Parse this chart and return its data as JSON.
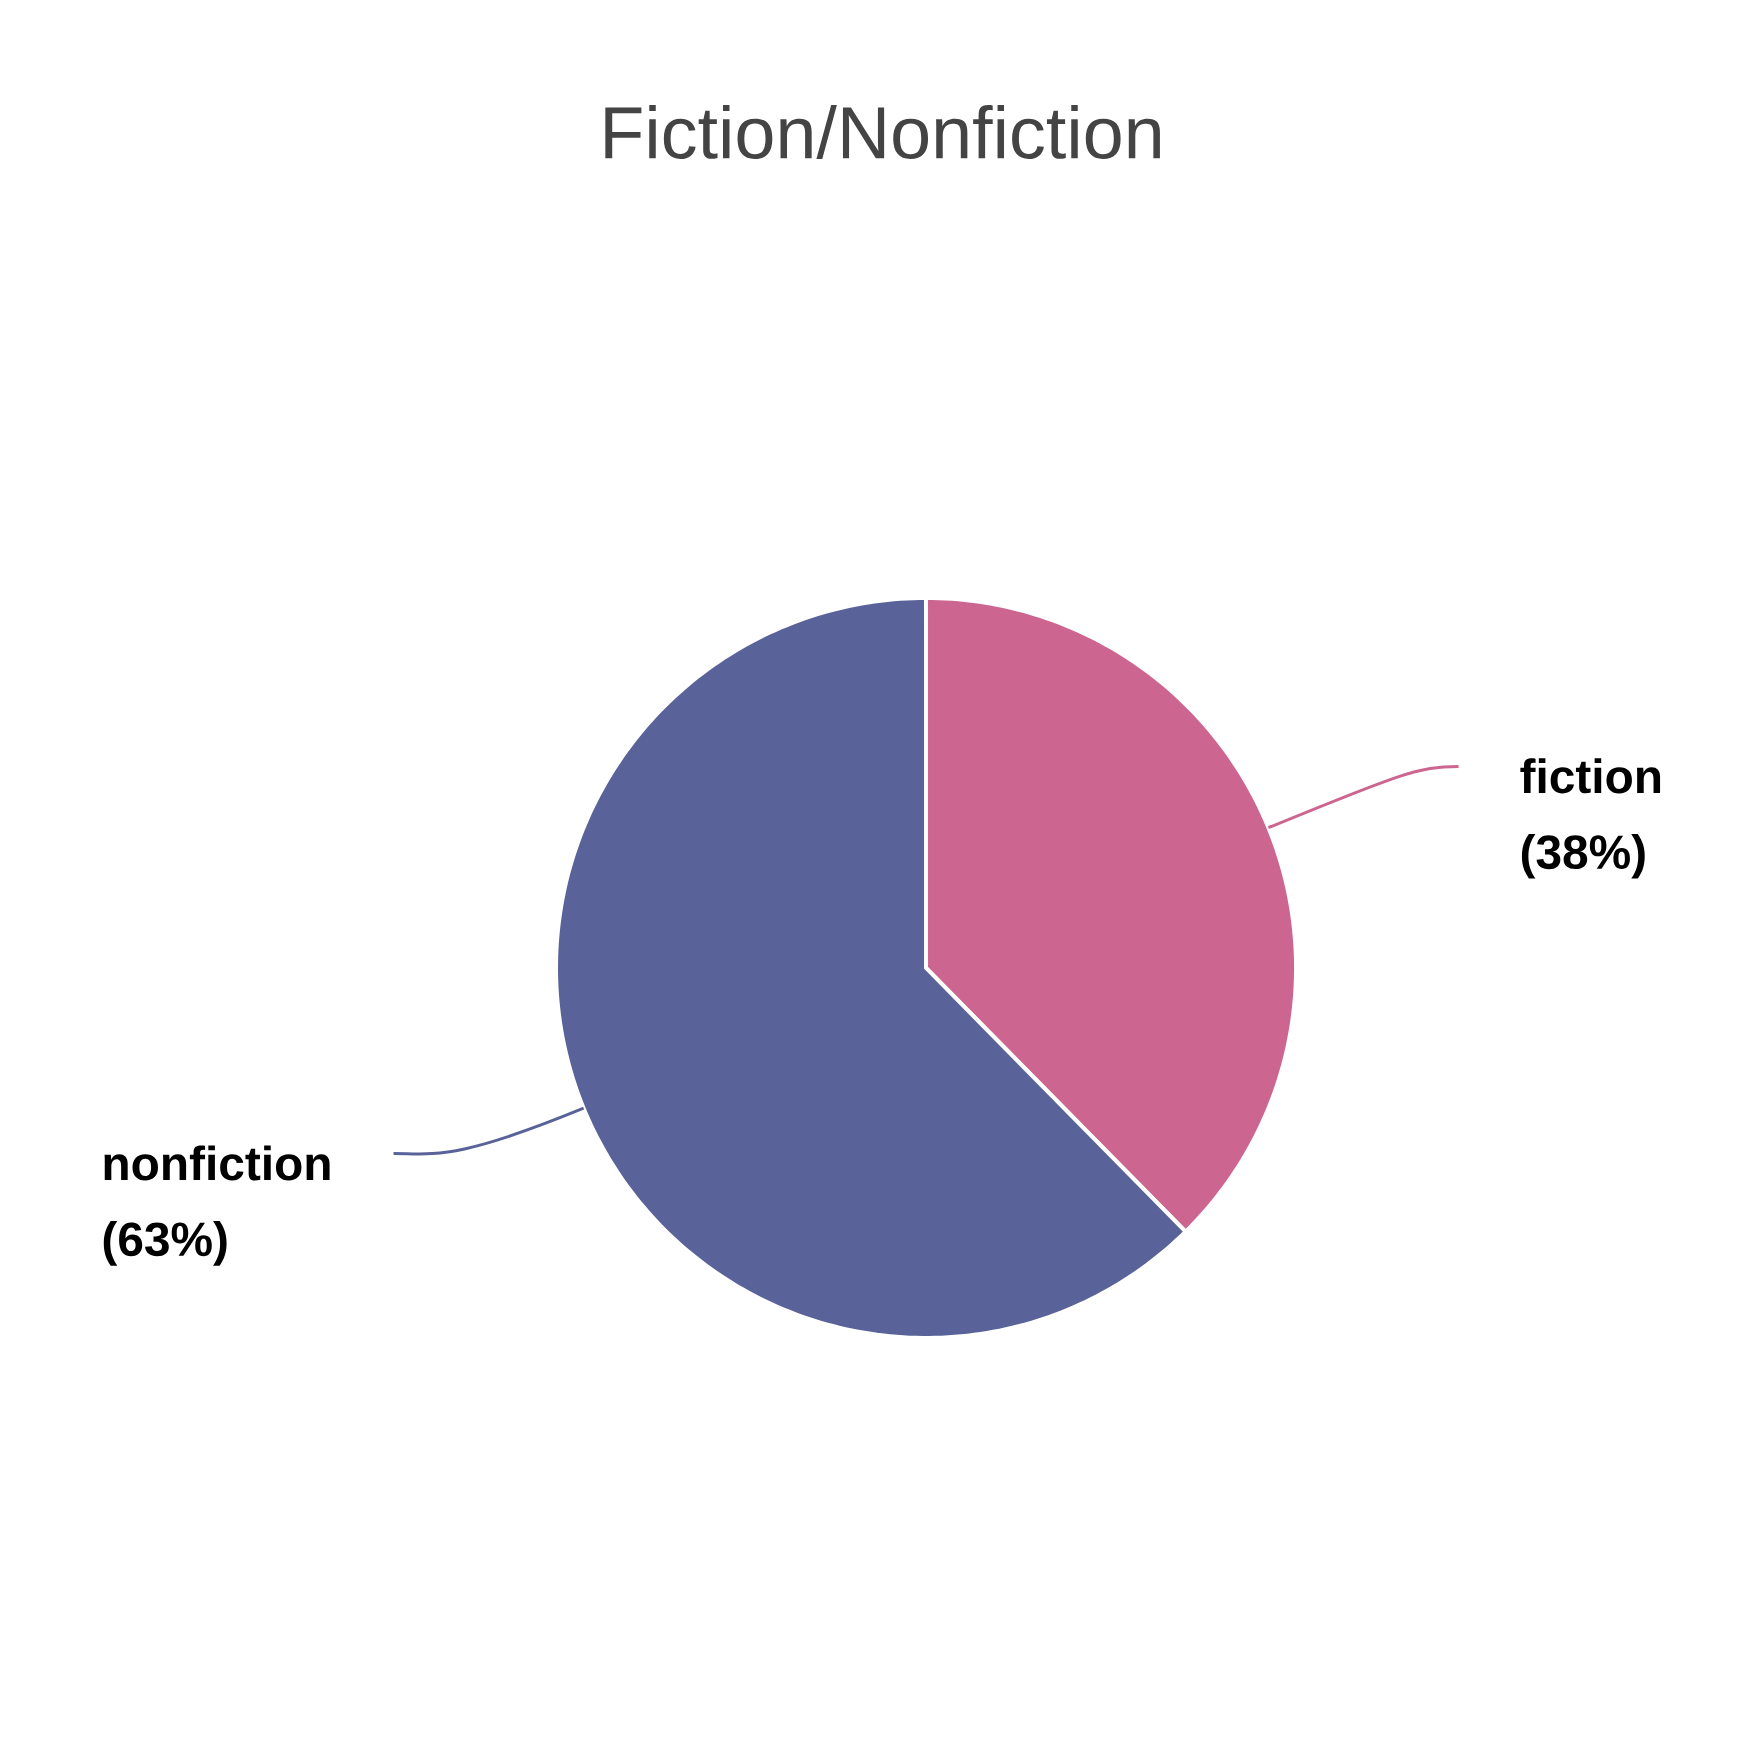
{
  "chart_data": {
    "type": "pie",
    "title": "Fiction/Nonfiction",
    "categories": [
      "fiction",
      "nonfiction"
    ],
    "values": [
      38,
      63
    ],
    "colors": [
      "#cc6690",
      "#5a6399"
    ],
    "value_labels": [
      "(38%)",
      "(63%)"
    ]
  }
}
